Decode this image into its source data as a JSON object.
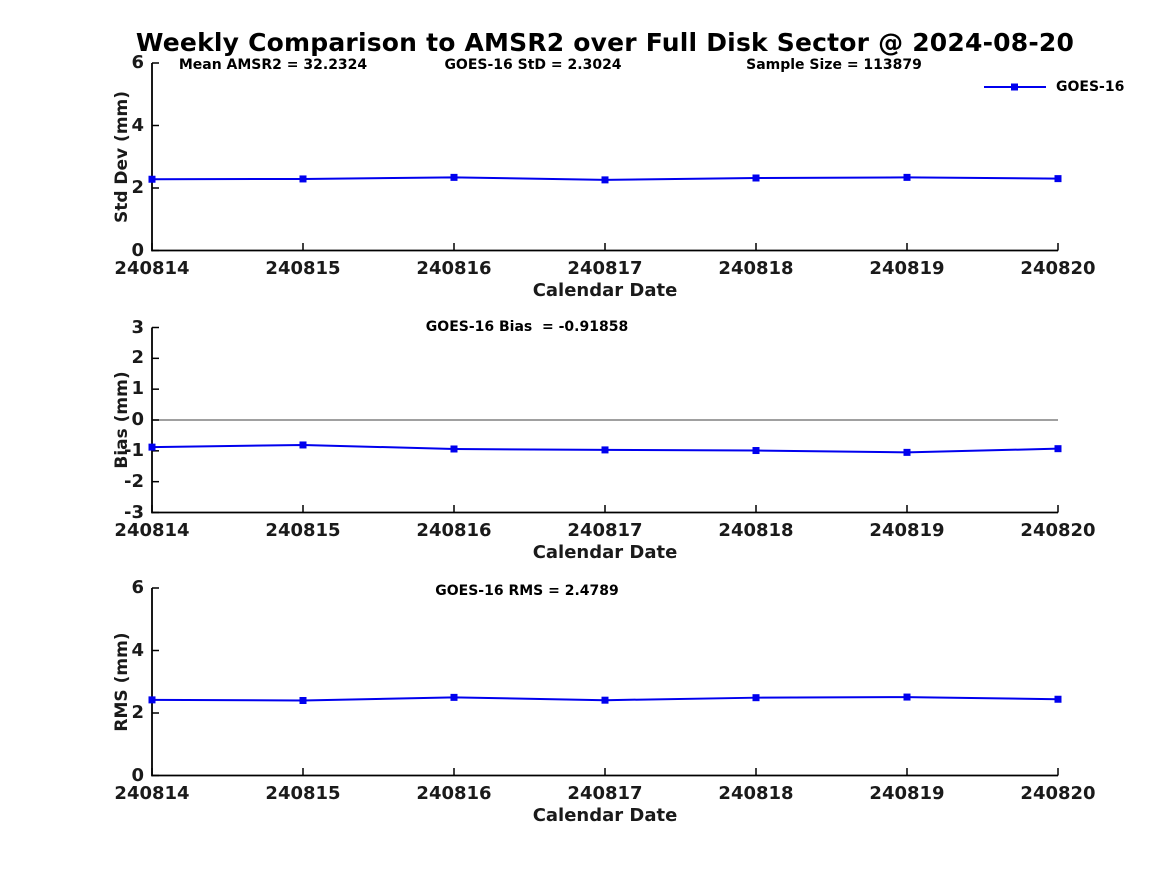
{
  "title": "Weekly Comparison to AMSR2 over Full Disk Sector @ 2024-08-20",
  "legend": {
    "label": "GOES-16",
    "marker": "square-on-line"
  },
  "colors": {
    "series": "#0000ee",
    "zero_line": "#808080",
    "axis": "#000000",
    "text": "#1a1a1a"
  },
  "chart_data": [
    {
      "type": "line",
      "panel": "std-dev",
      "annotations": [
        "Mean AMSR2 = 32.2324",
        "GOES-16 StD = 2.3024",
        "Sample Size = 113879"
      ],
      "categories": [
        "240814",
        "240815",
        "240816",
        "240817",
        "240818",
        "240819",
        "240820"
      ],
      "series": [
        {
          "name": "GOES-16",
          "values": [
            2.28,
            2.29,
            2.34,
            2.26,
            2.32,
            2.34,
            2.3
          ]
        }
      ],
      "xlabel": "Calendar Date",
      "ylabel": "Std Dev (mm)",
      "ylim": [
        0,
        6
      ],
      "yticks": [
        0,
        2,
        4,
        6
      ],
      "zero_line": false,
      "grid": false,
      "legend_position": "top-right",
      "marker": "square"
    },
    {
      "type": "line",
      "panel": "bias",
      "annotations": [
        "GOES-16 Bias  = -0.91858"
      ],
      "categories": [
        "240814",
        "240815",
        "240816",
        "240817",
        "240818",
        "240819",
        "240820"
      ],
      "series": [
        {
          "name": "GOES-16",
          "values": [
            -0.88,
            -0.81,
            -0.94,
            -0.97,
            -0.99,
            -1.05,
            -0.93
          ]
        }
      ],
      "xlabel": "Calendar Date",
      "ylabel": "Bias (mm)",
      "ylim": [
        -3,
        3
      ],
      "yticks": [
        -3,
        -2,
        -1,
        0,
        1,
        2,
        3
      ],
      "zero_line": true,
      "grid": false,
      "marker": "square"
    },
    {
      "type": "line",
      "panel": "rms",
      "annotations": [
        "GOES-16 RMS = 2.4789"
      ],
      "categories": [
        "240814",
        "240815",
        "240816",
        "240817",
        "240818",
        "240819",
        "240820"
      ],
      "series": [
        {
          "name": "GOES-16",
          "values": [
            2.42,
            2.4,
            2.5,
            2.41,
            2.49,
            2.51,
            2.44
          ]
        }
      ],
      "xlabel": "Calendar Date",
      "ylabel": "RMS (mm)",
      "ylim": [
        0,
        6
      ],
      "yticks": [
        0,
        2,
        4,
        6
      ],
      "zero_line": false,
      "grid": false,
      "marker": "square"
    }
  ]
}
